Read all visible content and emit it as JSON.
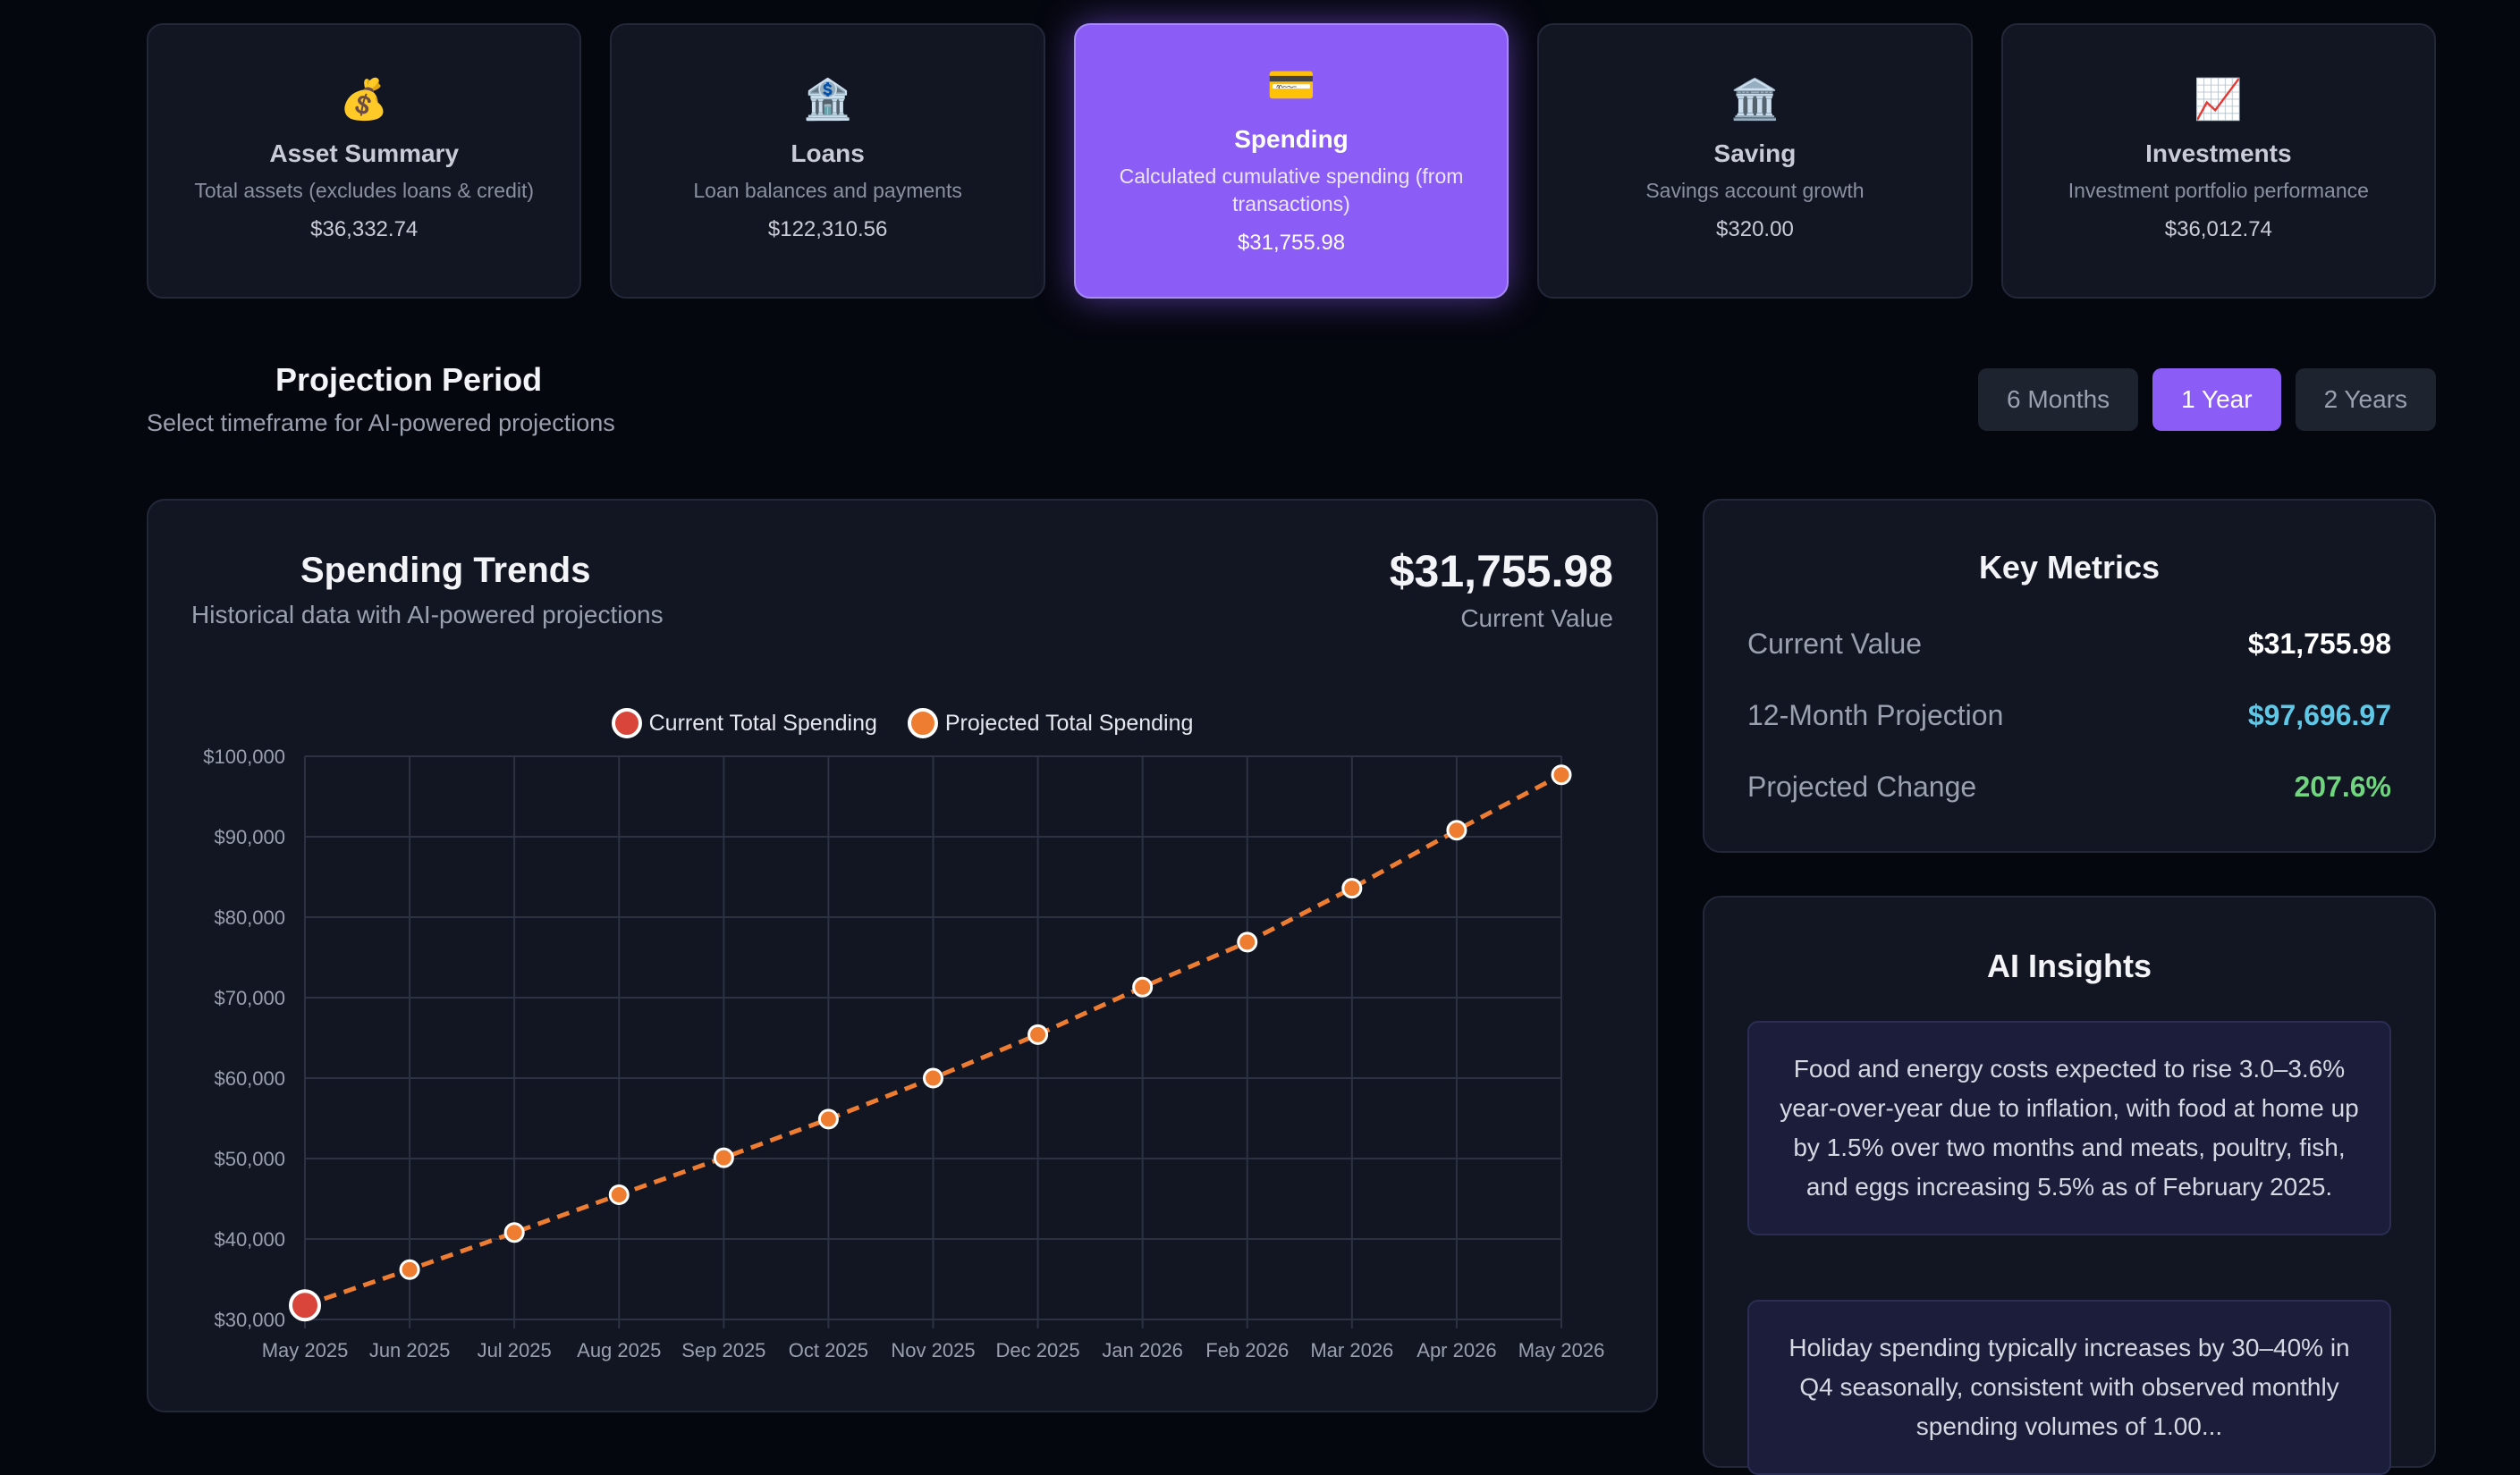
{
  "cards": [
    {
      "icon": "💰",
      "title": "Asset Summary",
      "desc": "Total assets (excludes loans & credit)",
      "value": "$36,332.74"
    },
    {
      "icon": "🏦",
      "title": "Loans",
      "desc": "Loan balances and payments",
      "value": "$122,310.56"
    },
    {
      "icon": "💳",
      "title": "Spending",
      "desc": "Calculated cumulative spending (from transactions)",
      "value": "$31,755.98"
    },
    {
      "icon": "🏛️",
      "title": "Saving",
      "desc": "Savings account growth",
      "value": "$320.00"
    },
    {
      "icon": "📈",
      "title": "Investments",
      "desc": "Investment portfolio performance",
      "value": "$36,012.74"
    }
  ],
  "active_card": 2,
  "period": {
    "title": "Projection Period",
    "subtitle": "Select timeframe for AI-powered projections",
    "options": [
      "6 Months",
      "1 Year",
      "2 Years"
    ],
    "selected": "1 Year"
  },
  "chart_panel": {
    "title": "Spending Trends",
    "subtitle": "Historical data with AI-powered projections",
    "current_value": "$31,755.98",
    "current_value_label": "Current Value"
  },
  "chart_data": {
    "type": "line",
    "x": [
      "May 2025",
      "Jun 2025",
      "Jul 2025",
      "Aug 2025",
      "Sep 2025",
      "Oct 2025",
      "Nov 2025",
      "Dec 2025",
      "Jan 2026",
      "Feb 2026",
      "Mar 2026",
      "Apr 2026",
      "May 2026"
    ],
    "series": [
      {
        "name": "Current Total Spending",
        "color": "#d9453a",
        "values": [
          31756,
          null,
          null,
          null,
          null,
          null,
          null,
          null,
          null,
          null,
          null,
          null,
          null
        ]
      },
      {
        "name": "Projected Total Spending",
        "color": "#ee7d32",
        "dashed": true,
        "values": [
          31756,
          36200,
          40800,
          45500,
          50100,
          54900,
          60000,
          65400,
          71300,
          76900,
          83600,
          90800,
          97697
        ]
      }
    ],
    "ylim": [
      30000,
      100000
    ],
    "yticks": [
      "$100,000",
      "$90,000",
      "$80,000",
      "$70,000",
      "$60,000",
      "$50,000",
      "$40,000",
      "$30,000"
    ],
    "ytick_values": [
      100000,
      90000,
      80000,
      70000,
      60000,
      50000,
      40000,
      30000
    ],
    "grid": true,
    "legend": "top-center"
  },
  "metrics": {
    "title": "Key Metrics",
    "rows": [
      {
        "label": "Current Value",
        "value": "$31,755.98",
        "color": "#ffffff"
      },
      {
        "label": "12-Month Projection",
        "value": "$97,696.97",
        "color": "#5ec8e6"
      },
      {
        "label": "Projected Change",
        "value": "207.6%",
        "color": "#6fd67f"
      }
    ]
  },
  "insights": {
    "title": "AI Insights",
    "items": [
      "Food and energy costs expected to rise 3.0–3.6% year-over-year due to inflation, with food at home up by 1.5% over two months and meats, poultry, fish, and eggs increasing 5.5% as of February 2025.",
      "Holiday spending typically increases by 30–40% in Q4 seasonally, consistent with observed monthly spending volumes of 1.00..."
    ]
  }
}
